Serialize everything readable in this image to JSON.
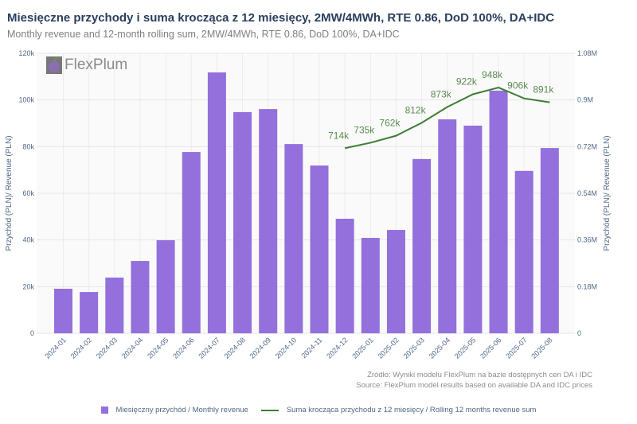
{
  "title": "Miesięczne przychody i suma krocząca z 12 miesięcy, 2MW/4MWh, RTE 0.86, DoD 100%, DA+IDC",
  "subtitle": "Monthly revenue and 12-month rolling sum, 2MW/4MWh, RTE 0.86, DoD 100%, DA+IDC",
  "logo": "FlexPlum",
  "source": [
    "Źródło: Wyniki modelu FlexPlum na bazie dostępnych cen DA i IDC",
    "Source: FlexPlum model results based on available DA and IDC prices"
  ],
  "colors": {
    "bar": "#9370db",
    "line": "#3d7d35",
    "line_label": "#5b8c50",
    "title": "#2a3f5f"
  },
  "chart_data": {
    "type": "bar+line",
    "categories": [
      "2024-01",
      "2024-02",
      "2024-03",
      "2024-04",
      "2024-05",
      "2024-06",
      "2024-07",
      "2024-08",
      "2024-09",
      "2024-10",
      "2024-11",
      "2024-12",
      "2025-01",
      "2025-02",
      "2025-03",
      "2025-04",
      "2025-05",
      "2025-06",
      "2025-07",
      "2025-08"
    ],
    "series": [
      {
        "name": "Miesięczny przychód / Monthly revenue",
        "type": "bar",
        "axis": "left",
        "values": [
          19100,
          17700,
          23900,
          31000,
          39900,
          77700,
          111800,
          94800,
          96100,
          81100,
          71900,
          49100,
          40900,
          44300,
          74700,
          91700,
          89000,
          104000,
          69600,
          79400
        ]
      },
      {
        "name": "Suma krocząca przychodu z 12 miesięcy / Rolling 12 months revenue sum",
        "type": "line",
        "axis": "right",
        "values": [
          null,
          null,
          null,
          null,
          null,
          null,
          null,
          null,
          null,
          null,
          null,
          714000,
          735000,
          762000,
          812000,
          873000,
          922000,
          948000,
          906000,
          891000
        ],
        "labels": [
          "",
          "",
          "",
          "",
          "",
          "",
          "",
          "",
          "",
          "",
          "",
          "714k",
          "735k",
          "762k",
          "812k",
          "873k",
          "922k",
          "948k",
          "906k",
          "891k"
        ]
      }
    ],
    "ylabel": "Przychód (PLN)/ Revenue (PLN)",
    "y2label": "Przychód (PLN)/ Revenue (PLN)",
    "ylim": [
      0,
      120000
    ],
    "y2lim": [
      0,
      1080000
    ],
    "yticks": [
      "0",
      "20k",
      "40k",
      "60k",
      "80k",
      "100k",
      "120k"
    ],
    "y2ticks": [
      "0",
      "0.18M",
      "0.36M",
      "0.54M",
      "0.72M",
      "0.9M",
      "1.08M"
    ],
    "grid": true,
    "legend": "bottom"
  }
}
